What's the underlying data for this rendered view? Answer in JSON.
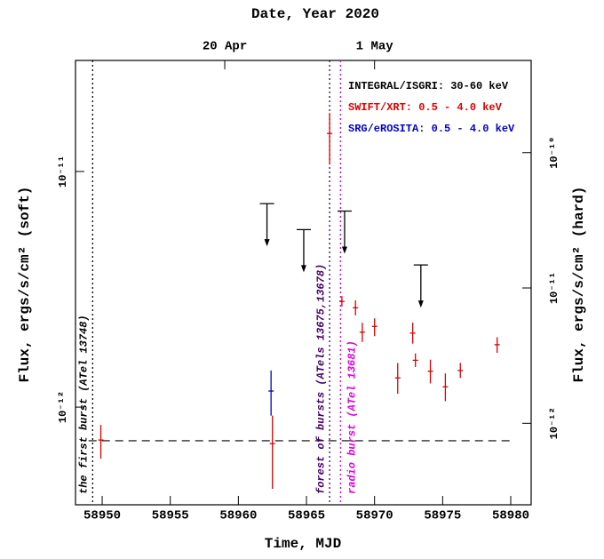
{
  "chart_data": {
    "type": "scatter",
    "title": "Date, Year 2020",
    "xlabel": "Time, MJD",
    "ylabel": "Flux, ergs/s/cm² (soft)",
    "y2label": "Flux, ergs/s/cm² (hard)",
    "xlim": [
      58948.04,
      58981.5
    ],
    "xticks": [
      58950,
      58955,
      58960,
      58965,
      58970,
      58975,
      58980
    ],
    "x2ticks": [
      {
        "value": 58959,
        "label": "20 Apr"
      },
      {
        "value": 58970,
        "label": "1 May"
      }
    ],
    "ylim": [
      3.85e-13,
      2.96e-11
    ],
    "yticks": [
      {
        "value": 1e-12,
        "label": "10⁻¹²"
      },
      {
        "value": 1e-11,
        "label": "10⁻¹¹"
      }
    ],
    "y2lim": [
      2.5e-13,
      4.8e-10
    ],
    "y2ticks": [
      {
        "value": 1e-12,
        "label": "10⁻¹²"
      },
      {
        "value": 1e-11,
        "label": "10⁻¹¹"
      },
      {
        "value": 1e-10,
        "label": "10⁻¹⁰"
      }
    ],
    "log_y": true,
    "series": [
      {
        "name": "INTEGRAL/ISGRI: 30-60 keV",
        "color": "#000000",
        "axis": "y2",
        "upper_limit": true,
        "x": [
          58962.1,
          58964.8,
          58967.8,
          58973.4
        ],
        "values": [
          4.2e-11,
          2.7e-11,
          3.7e-11,
          1.48e-11
        ]
      },
      {
        "name": "SWIFT/XRT: 0.5 - 4.0 keV",
        "color": "#dd0000",
        "x": [
          58949.9,
          58962.5,
          58966.7,
          58967.6,
          58968.6,
          58969.1,
          58970.0,
          58971.7,
          58972.8,
          58973.0,
          58974.1,
          58975.2,
          58976.3,
          58979.0
        ],
        "values": [
          7.25e-13,
          7e-13,
          1.45e-11,
          2.81e-12,
          2.64e-12,
          2.08e-12,
          2.2e-12,
          1.33e-12,
          2.06e-12,
          1.58e-12,
          1.42e-12,
          1.22e-12,
          1.43e-12,
          1.84e-12
        ],
        "low": [
          6.04e-13,
          4.5e-13,
          1.07e-11,
          2.67e-12,
          2.45e-12,
          1.89e-12,
          2e-12,
          1.14e-12,
          1.86e-12,
          1.48e-12,
          1.26e-12,
          1.06e-12,
          1.33e-12,
          1.7e-12
        ],
        "high": [
          8.4e-13,
          9.2e-13,
          1.77e-11,
          2.96e-12,
          2.84e-12,
          2.28e-12,
          2.38e-12,
          1.54e-12,
          2.28e-12,
          1.69e-12,
          1.59e-12,
          1.39e-12,
          1.54e-12,
          1.98e-12
        ]
      },
      {
        "name": "SRG/eROSITA: 0.5 - 4.0 keV",
        "color": "#0000cc",
        "x": [
          58962.4
        ],
        "values": [
          1.17e-12
        ],
        "low": [
          9.2e-13
        ],
        "high": [
          1.43e-12
        ]
      }
    ],
    "vlines": [
      {
        "x": 58949.3,
        "label": "the first burst (ATel 13748)",
        "color": "#000000"
      },
      {
        "x": 58966.7,
        "label": "forest of bursts (ATels 13675,13678)",
        "color": "#440066"
      },
      {
        "x": 58967.5,
        "label": "radio burst (ATel 13681)",
        "color": "#dd00dd"
      }
    ],
    "hline": {
      "y": 7.2e-13,
      "xmin": 58949,
      "xmax": 58980,
      "color": "#000000"
    }
  }
}
